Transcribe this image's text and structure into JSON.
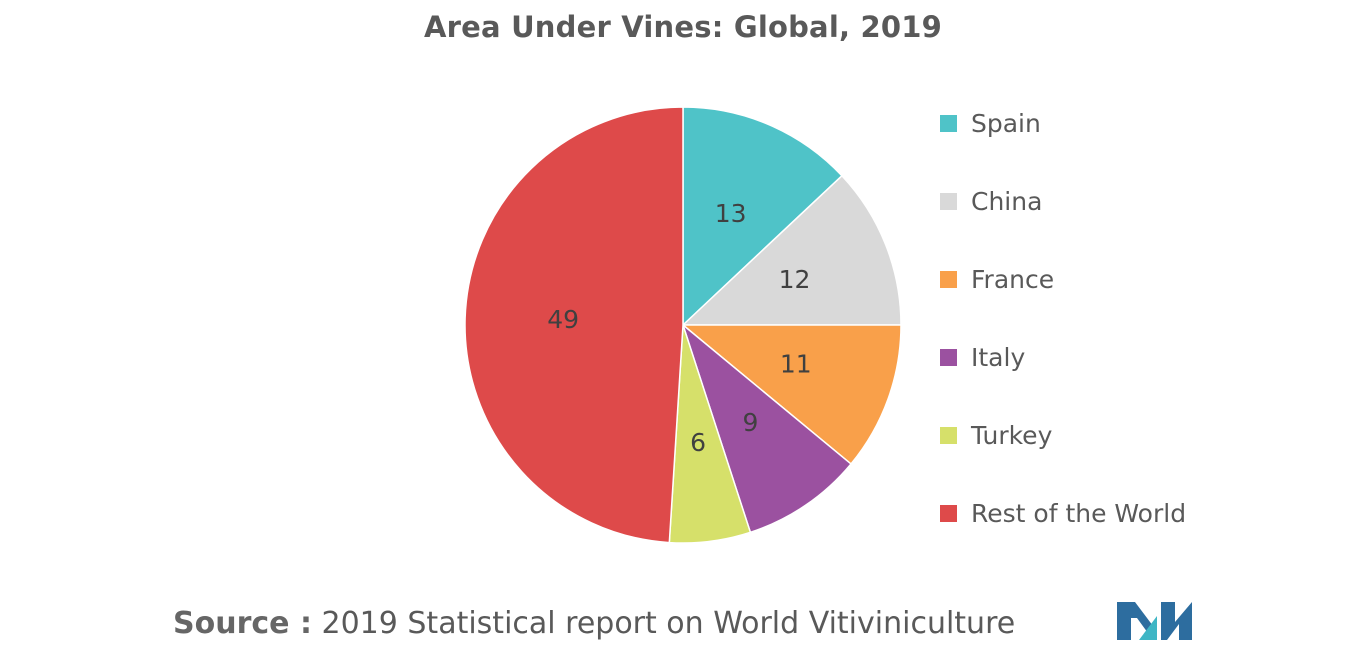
{
  "chart_data": {
    "type": "pie",
    "title": "Area Under Vines: Global, 2019",
    "categories": [
      "Spain",
      "China",
      "France",
      "Italy",
      "Turkey",
      "Rest of the World"
    ],
    "values": [
      13,
      12,
      11,
      9,
      6,
      49
    ],
    "colors": [
      "#4fc3c8",
      "#d9d9d9",
      "#f9a04a",
      "#9b51a0",
      "#d6e06a",
      "#de4a4a"
    ],
    "legend_position": "right"
  },
  "source": {
    "prefix": "Source :",
    "text": "2019 Statistical report on World Vitiviniculture"
  },
  "logo": {
    "colors": [
      "#2d6d9f",
      "#3fb6c5"
    ]
  }
}
